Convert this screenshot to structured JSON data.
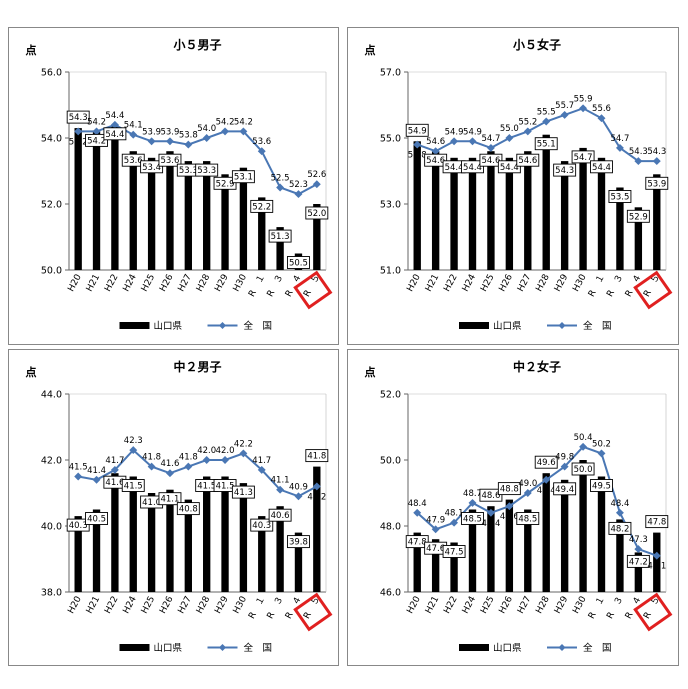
{
  "legend": {
    "prefecture": "山口県",
    "national": "全　国"
  },
  "y_unit": "点",
  "colors": {
    "prefecture_bar": "#000000",
    "national_line": "#4a77b4",
    "highlight_box": "#e02020",
    "frame": "#888888"
  },
  "chart_data": [
    {
      "type": "bar",
      "title": "小５男子",
      "ylim": [
        50,
        56
      ],
      "yticks": [
        "50.0",
        "52.0",
        "54.0",
        "56.0"
      ],
      "categories": [
        "H20",
        "H21",
        "H22",
        "H24",
        "H25",
        "H26",
        "H27",
        "H28",
        "H29",
        "H30",
        "R　１",
        "R　３",
        "R　４",
        "R　５"
      ],
      "highlight_category": "R　５",
      "series": [
        {
          "name": "山口県",
          "type": "bar",
          "values": [
            54.3,
            54.2,
            54.4,
            53.6,
            53.4,
            53.6,
            53.3,
            53.3,
            52.9,
            53.1,
            52.2,
            51.3,
            50.5,
            52.0
          ],
          "labels": [
            "54.3",
            "54.2",
            "54.4",
            "53.6",
            "53.4",
            "53.6",
            "53.3",
            "53.3",
            "52.9",
            "53.1",
            "52.2",
            "51.3",
            "50.5",
            "52.0"
          ]
        },
        {
          "name": "全　国",
          "type": "line",
          "values": [
            54.2,
            54.2,
            54.4,
            54.1,
            53.9,
            53.9,
            53.8,
            54.0,
            54.2,
            54.2,
            53.6,
            52.5,
            52.3,
            52.6
          ],
          "labels": [
            "54.2",
            "54.2",
            "54.4",
            "54.1",
            "53.9",
            "53.9",
            "53.8",
            "54.0",
            "54.2",
            "54.2",
            "53.6",
            "52.5",
            "52.3",
            "52.6"
          ]
        }
      ]
    },
    {
      "type": "bar",
      "title": "小５女子",
      "ylim": [
        51,
        57
      ],
      "yticks": [
        "51.0",
        "53.0",
        "55.0",
        "57.0"
      ],
      "categories": [
        "H20",
        "H21",
        "H22",
        "H24",
        "H25",
        "H26",
        "H27",
        "H28",
        "H29",
        "H30",
        "R　１",
        "R　３",
        "R　４",
        "R　５"
      ],
      "highlight_category": "R　５",
      "series": [
        {
          "name": "山口県",
          "type": "bar",
          "values": [
            54.9,
            54.6,
            54.4,
            54.4,
            54.6,
            54.4,
            54.6,
            55.1,
            54.3,
            54.7,
            54.4,
            53.5,
            52.9,
            53.9
          ],
          "labels": [
            "54.9",
            "54.6",
            "54.4",
            "54.4",
            "54.6",
            "54.4",
            "54.6",
            "55.1",
            "54.3",
            "54.7",
            "54.4",
            "53.5",
            "52.9",
            "53.9"
          ]
        },
        {
          "name": "全　国",
          "type": "line",
          "values": [
            54.8,
            54.6,
            54.9,
            54.9,
            54.7,
            55.0,
            55.2,
            55.5,
            55.7,
            55.9,
            55.6,
            54.7,
            54.3,
            54.3
          ],
          "labels": [
            "54.8",
            "54.6",
            "54.9",
            "54.9",
            "54.7",
            "55.0",
            "55.2",
            "55.5",
            "55.7",
            "55.9",
            "55.6",
            "54.7",
            "54.3",
            "54.3"
          ]
        }
      ]
    },
    {
      "type": "bar",
      "title": "中２男子",
      "ylim": [
        38,
        44
      ],
      "yticks": [
        "38.0",
        "40.0",
        "42.0",
        "44.0"
      ],
      "categories": [
        "H20",
        "H21",
        "H22",
        "H24",
        "H25",
        "H26",
        "H27",
        "H28",
        "H29",
        "H30",
        "R　１",
        "R　３",
        "R　４",
        "R　５"
      ],
      "highlight_category": "R　５",
      "series": [
        {
          "name": "山口県",
          "type": "bar",
          "values": [
            40.3,
            40.5,
            41.6,
            41.5,
            41.0,
            41.1,
            40.8,
            41.5,
            41.5,
            41.3,
            40.3,
            40.6,
            39.8,
            41.8
          ],
          "labels": [
            "40.3",
            "40.5",
            "41.6",
            "41.5",
            "41.0",
            "41.1",
            "40.8",
            "41.5",
            "41.5",
            "41.3",
            "40.3",
            "40.6",
            "39.8",
            "41.8"
          ]
        },
        {
          "name": "全　国",
          "type": "line",
          "values": [
            41.5,
            41.4,
            41.7,
            42.3,
            41.8,
            41.6,
            41.8,
            42.0,
            42.0,
            42.2,
            41.7,
            41.1,
            40.9,
            41.2
          ],
          "labels": [
            "41.5",
            "41.4",
            "41.7",
            "42.3",
            "41.8",
            "41.6",
            "41.8",
            "42.0",
            "42.0",
            "42.2",
            "41.7",
            "41.1",
            "40.9",
            "41.2"
          ]
        }
      ]
    },
    {
      "type": "bar",
      "title": "中２女子",
      "ylim": [
        46,
        52
      ],
      "yticks": [
        "46.0",
        "48.0",
        "50.0",
        "52.0"
      ],
      "categories": [
        "H20",
        "H21",
        "H22",
        "H24",
        "H25",
        "H26",
        "H27",
        "H28",
        "H29",
        "H30",
        "R　１",
        "R　３",
        "R　４",
        "R　５"
      ],
      "highlight_category": "R　５",
      "series": [
        {
          "name": "山口県",
          "type": "bar",
          "values": [
            47.8,
            47.6,
            47.5,
            48.5,
            48.6,
            48.8,
            48.5,
            49.6,
            49.4,
            50.0,
            49.5,
            48.2,
            47.2,
            47.8
          ],
          "labels": [
            "47.8",
            "47.6",
            "47.5",
            "48.5",
            "48.6",
            "48.8",
            "48.5",
            "49.6",
            "49.4",
            "50.0",
            "49.5",
            "48.2",
            "47.2",
            "47.8"
          ]
        },
        {
          "name": "全　国",
          "type": "line",
          "values": [
            48.4,
            47.9,
            48.1,
            48.7,
            48.4,
            48.6,
            49.0,
            49.4,
            49.8,
            50.4,
            50.2,
            48.4,
            47.3,
            47.1
          ],
          "labels": [
            "48.4",
            "47.9",
            "48.1",
            "48.7",
            "48.4",
            "48.6",
            "49.0",
            "49.4",
            "49.8",
            "50.4",
            "50.2",
            "48.4",
            "47.3",
            "47.1"
          ]
        }
      ]
    }
  ]
}
